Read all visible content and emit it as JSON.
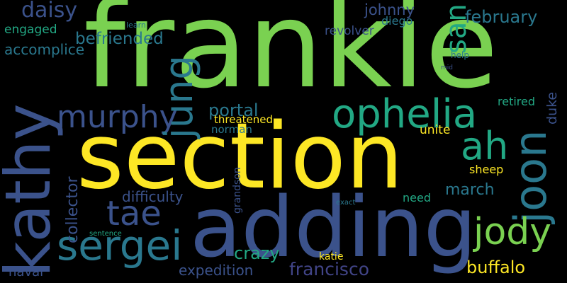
{
  "words": {
    "frankie": "frankie",
    "section": "section",
    "adding": "adding",
    "kathy": "kathy",
    "ophelia": "ophelia",
    "joon": "joon",
    "sergei": "sergei",
    "jody": "jody",
    "murphy": "murphy",
    "tae": "tae",
    "ah": "ah",
    "jung": "jung",
    "san": "san",
    "daisy": "daisy",
    "befriended": "befriended",
    "february": "february",
    "johnny": "johnny",
    "diego": "diego",
    "revolver": "revolver",
    "engaged": "engaged",
    "accomplice": "accomplice",
    "portal": "portal",
    "threatened": "threatened",
    "norman": "norman",
    "retired": "retired",
    "duke": "duke",
    "unite": "unite",
    "collector": "collector",
    "difficulty": "difficulty",
    "sheep": "sheep",
    "march": "march",
    "need": "need",
    "grandson": "grandson",
    "crazy": "crazy",
    "katie": "katie",
    "expedition": "expedition",
    "francisco": "francisco",
    "buffalo": "buffalo",
    "naval": "naval",
    "help": "help",
    "learn": "learn",
    "exact": "exact",
    "sentence": "sentence",
    "mid": "mid"
  },
  "colors": {
    "background": "#000000",
    "yellow_green": "#7ad151",
    "yellow": "#fde725",
    "indigo": "#3b528b",
    "teal": "#2a788e",
    "green": "#22a884",
    "slate": "#414487",
    "purple": "#440154"
  }
}
